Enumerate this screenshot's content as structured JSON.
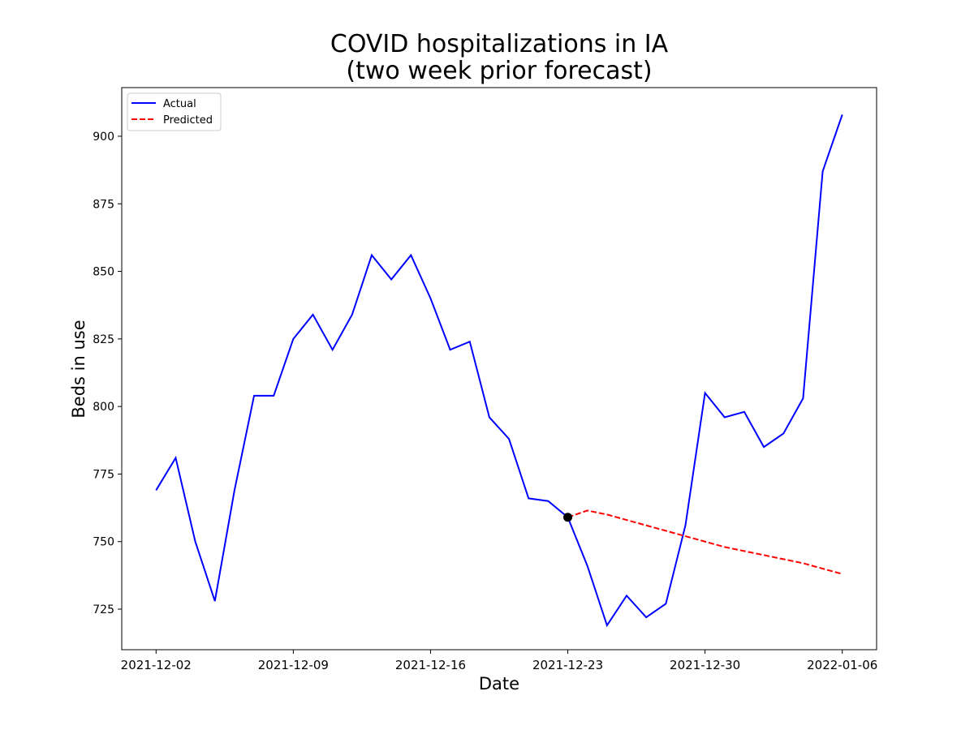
{
  "chart_data": {
    "type": "line",
    "title_line1": "COVID hospitalizations in IA",
    "title_line2": "(two week prior forecast)",
    "xlabel": "Date",
    "ylabel": "Beds in use",
    "x_start": "2021-12-02",
    "x_ticks": [
      "2021-12-02",
      "2021-12-09",
      "2021-12-16",
      "2021-12-23",
      "2021-12-30",
      "2022-01-06"
    ],
    "y_ticks": [
      725,
      750,
      775,
      800,
      825,
      850,
      875,
      900
    ],
    "xlim": [
      "2021-12-00.25",
      "2022-01-07.75"
    ],
    "ylim": [
      710,
      918
    ],
    "legend": {
      "placement": "top-left",
      "entries": [
        "Actual",
        "Predicted"
      ]
    },
    "colors": {
      "actual": "#0000ff",
      "predicted": "#ff0000",
      "marker": "#000000"
    },
    "series": [
      {
        "name": "Actual",
        "style": "solid",
        "x": [
          "2021-12-02",
          "2021-12-03",
          "2021-12-04",
          "2021-12-05",
          "2021-12-06",
          "2021-12-07",
          "2021-12-08",
          "2021-12-09",
          "2021-12-10",
          "2021-12-11",
          "2021-12-12",
          "2021-12-13",
          "2021-12-14",
          "2021-12-15",
          "2021-12-16",
          "2021-12-17",
          "2021-12-18",
          "2021-12-19",
          "2021-12-20",
          "2021-12-21",
          "2021-12-22",
          "2021-12-23",
          "2021-12-24",
          "2021-12-25",
          "2021-12-26",
          "2021-12-27",
          "2021-12-28",
          "2021-12-29",
          "2021-12-30",
          "2021-12-31",
          "2022-01-01",
          "2022-01-02",
          "2022-01-03",
          "2022-01-04",
          "2022-01-05",
          "2022-01-06"
        ],
        "values": [
          769,
          781,
          750,
          728,
          769,
          804,
          804,
          825,
          834,
          821,
          834,
          856,
          847,
          856,
          840,
          821,
          824,
          796,
          788,
          766,
          765,
          759,
          741,
          719,
          730,
          722,
          727,
          756,
          805,
          796,
          798,
          785,
          790,
          803,
          887,
          908
        ]
      },
      {
        "name": "Predicted",
        "style": "dashed",
        "x": [
          "2021-12-23",
          "2021-12-24",
          "2021-12-25",
          "2021-12-26",
          "2021-12-27",
          "2021-12-28",
          "2021-12-29",
          "2021-12-30",
          "2021-12-31",
          "2022-01-01",
          "2022-01-02",
          "2022-01-03",
          "2022-01-04",
          "2022-01-05",
          "2022-01-06"
        ],
        "values": [
          759,
          761.5,
          760,
          758,
          756,
          754,
          752,
          750,
          748,
          746.5,
          745,
          743.5,
          742,
          740,
          738
        ]
      }
    ],
    "marker_point": {
      "x": "2021-12-23",
      "y": 759
    }
  }
}
